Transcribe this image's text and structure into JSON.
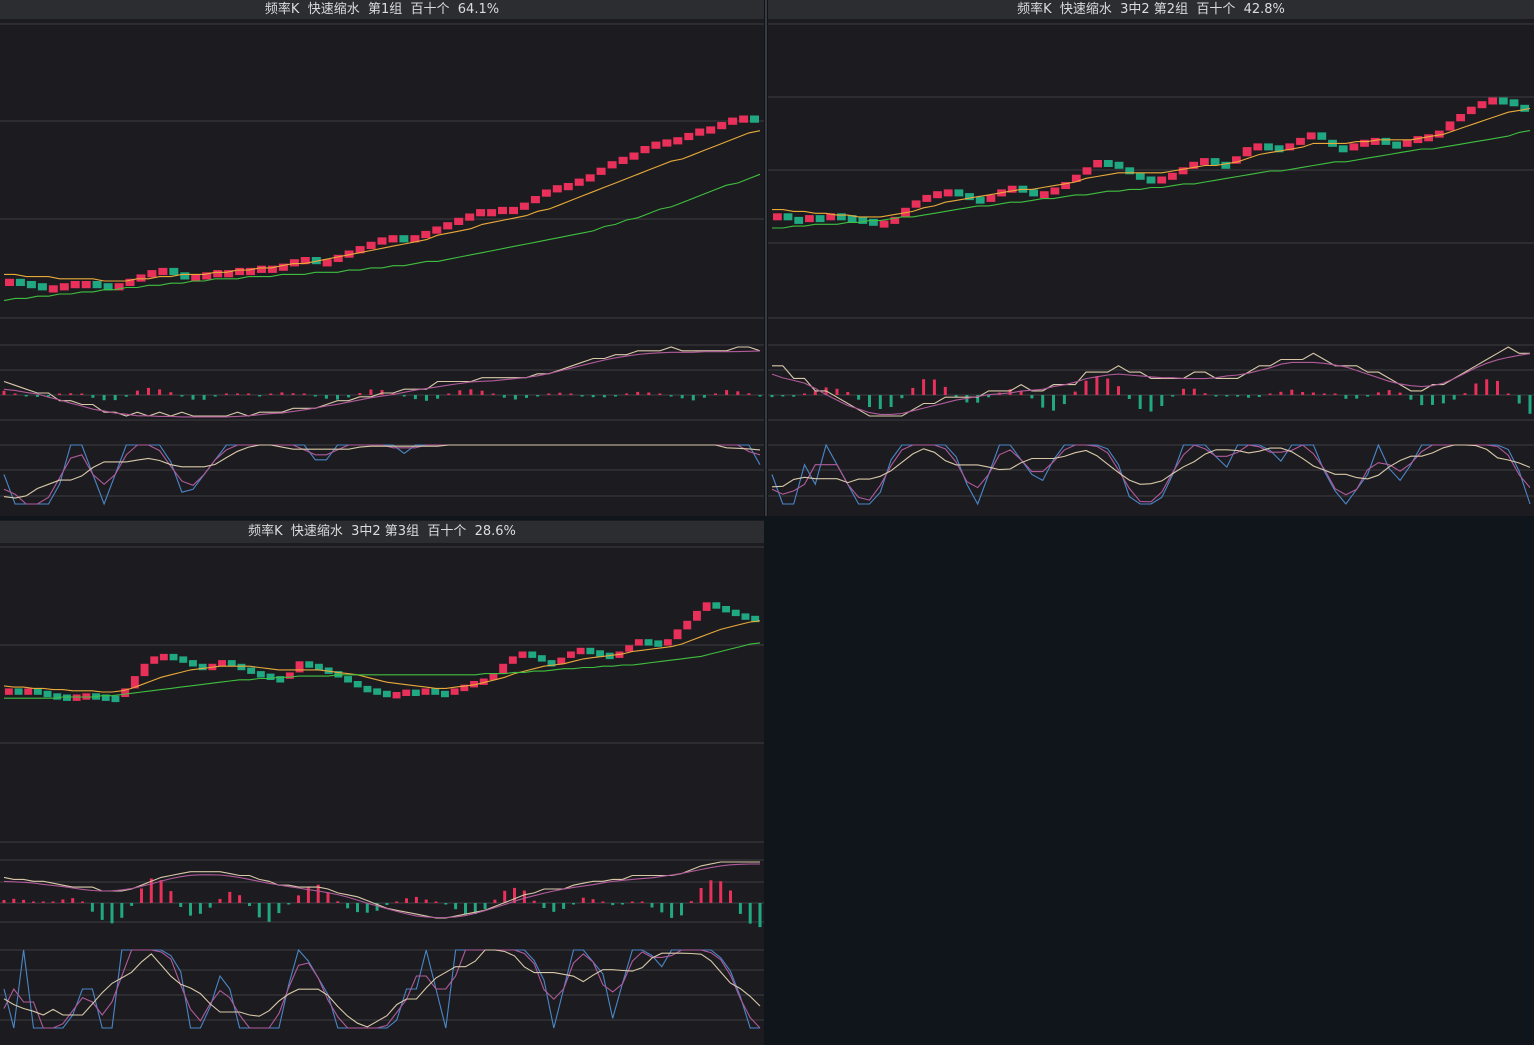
{
  "colors": {
    "background": "#10141b",
    "panel": "#1c1c20",
    "title_bar": "#2c2d31",
    "up": "#e8305a",
    "down": "#20a882",
    "ma_short": "#e8a93a",
    "ma_long": "#3fbf3f",
    "line_a": "#d8c8a8",
    "line_b": "#b05a9a",
    "line_c": "#4a86c8",
    "grid": "#3c3d42"
  },
  "panels": [
    {
      "title": "频率K  快速缩水  第1组  百十个  64.1%"
    },
    {
      "title": "频率K  快速缩水  3中2 第2组  百十个  42.8%"
    },
    {
      "title": "频率K  快速缩水  3中2 第3组  百十个  28.6%"
    }
  ],
  "chart_data": [
    {
      "type": "candlestick",
      "title": "频率K  快速缩水  第1组  百十个  64.1%",
      "ohlc_trend": [
        0.18,
        0.17,
        0.16,
        0.15,
        0.15,
        0.16,
        0.17,
        0.17,
        0.16,
        0.15,
        0.16,
        0.18,
        0.2,
        0.22,
        0.23,
        0.21,
        0.19,
        0.2,
        0.21,
        0.22,
        0.22,
        0.23,
        0.23,
        0.24,
        0.24,
        0.25,
        0.27,
        0.28,
        0.27,
        0.27,
        0.29,
        0.31,
        0.33,
        0.35,
        0.37,
        0.38,
        0.37,
        0.38,
        0.4,
        0.42,
        0.44,
        0.46,
        0.48,
        0.5,
        0.5,
        0.51,
        0.51,
        0.53,
        0.56,
        0.59,
        0.61,
        0.62,
        0.64,
        0.66,
        0.69,
        0.72,
        0.74,
        0.76,
        0.79,
        0.81,
        0.82,
        0.83,
        0.85,
        0.87,
        0.88,
        0.9,
        0.92,
        0.93,
        0.91
      ],
      "ma_short": [
        0.2,
        0.2,
        0.19,
        0.19,
        0.19,
        0.18,
        0.18,
        0.18,
        0.18,
        0.17,
        0.17,
        0.17,
        0.18,
        0.18,
        0.19,
        0.19,
        0.2,
        0.2,
        0.2,
        0.21,
        0.21,
        0.22,
        0.22,
        0.23,
        0.23,
        0.24,
        0.25,
        0.25,
        0.26,
        0.27,
        0.28,
        0.29,
        0.3,
        0.31,
        0.32,
        0.33,
        0.34,
        0.35,
        0.36,
        0.38,
        0.39,
        0.4,
        0.41,
        0.43,
        0.44,
        0.45,
        0.46,
        0.47,
        0.49,
        0.5,
        0.52,
        0.54,
        0.56,
        0.58,
        0.6,
        0.62,
        0.64,
        0.66,
        0.68,
        0.7,
        0.72,
        0.73,
        0.75,
        0.77,
        0.79,
        0.81,
        0.83,
        0.85,
        0.86
      ],
      "ma_long": [
        0.08,
        0.09,
        0.09,
        0.1,
        0.1,
        0.11,
        0.11,
        0.12,
        0.12,
        0.13,
        0.13,
        0.14,
        0.14,
        0.15,
        0.15,
        0.16,
        0.16,
        0.17,
        0.17,
        0.18,
        0.18,
        0.18,
        0.19,
        0.19,
        0.19,
        0.2,
        0.2,
        0.2,
        0.21,
        0.21,
        0.21,
        0.22,
        0.22,
        0.23,
        0.23,
        0.24,
        0.24,
        0.25,
        0.26,
        0.26,
        0.27,
        0.28,
        0.29,
        0.3,
        0.31,
        0.32,
        0.33,
        0.34,
        0.35,
        0.36,
        0.37,
        0.38,
        0.39,
        0.4,
        0.42,
        0.43,
        0.45,
        0.46,
        0.48,
        0.5,
        0.51,
        0.53,
        0.55,
        0.57,
        0.59,
        0.61,
        0.62,
        0.64,
        0.66
      ]
    },
    {
      "type": "candlestick",
      "title": "频率K  快速缩水  3中2 第2组  百十个  42.8%",
      "ohlc_trend": [
        0.22,
        0.2,
        0.19,
        0.21,
        0.2,
        0.22,
        0.21,
        0.2,
        0.19,
        0.17,
        0.18,
        0.2,
        0.25,
        0.29,
        0.32,
        0.34,
        0.35,
        0.33,
        0.31,
        0.29,
        0.32,
        0.35,
        0.37,
        0.35,
        0.33,
        0.34,
        0.36,
        0.39,
        0.43,
        0.47,
        0.51,
        0.5,
        0.47,
        0.44,
        0.42,
        0.41,
        0.42,
        0.44,
        0.47,
        0.5,
        0.52,
        0.5,
        0.49,
        0.53,
        0.58,
        0.6,
        0.59,
        0.57,
        0.6,
        0.63,
        0.66,
        0.62,
        0.59,
        0.58,
        0.6,
        0.62,
        0.63,
        0.61,
        0.6,
        0.62,
        0.64,
        0.65,
        0.67,
        0.72,
        0.76,
        0.8,
        0.83,
        0.85,
        0.84,
        0.81,
        0.78
      ],
      "ma_short": [
        0.24,
        0.24,
        0.23,
        0.23,
        0.22,
        0.22,
        0.21,
        0.21,
        0.2,
        0.2,
        0.2,
        0.21,
        0.22,
        0.23,
        0.25,
        0.26,
        0.28,
        0.29,
        0.3,
        0.31,
        0.32,
        0.33,
        0.34,
        0.35,
        0.35,
        0.36,
        0.37,
        0.38,
        0.39,
        0.41,
        0.42,
        0.43,
        0.44,
        0.44,
        0.44,
        0.44,
        0.44,
        0.45,
        0.46,
        0.47,
        0.48,
        0.48,
        0.49,
        0.5,
        0.52,
        0.54,
        0.55,
        0.56,
        0.57,
        0.58,
        0.6,
        0.6,
        0.6,
        0.6,
        0.61,
        0.61,
        0.62,
        0.62,
        0.62,
        0.62,
        0.63,
        0.64,
        0.65,
        0.67,
        0.69,
        0.71,
        0.73,
        0.75,
        0.77,
        0.78,
        0.79
      ],
      "ma_long": [
        0.14,
        0.14,
        0.15,
        0.15,
        0.16,
        0.16,
        0.16,
        0.17,
        0.17,
        0.18,
        0.18,
        0.19,
        0.2,
        0.2,
        0.21,
        0.22,
        0.23,
        0.24,
        0.25,
        0.26,
        0.26,
        0.27,
        0.28,
        0.28,
        0.29,
        0.3,
        0.3,
        0.31,
        0.32,
        0.32,
        0.33,
        0.34,
        0.34,
        0.35,
        0.35,
        0.36,
        0.36,
        0.37,
        0.38,
        0.38,
        0.39,
        0.4,
        0.41,
        0.42,
        0.43,
        0.44,
        0.45,
        0.45,
        0.46,
        0.47,
        0.48,
        0.49,
        0.5,
        0.5,
        0.51,
        0.52,
        0.53,
        0.54,
        0.55,
        0.56,
        0.57,
        0.57,
        0.58,
        0.59,
        0.6,
        0.61,
        0.62,
        0.63,
        0.64,
        0.66,
        0.67
      ]
    },
    {
      "type": "candlestick",
      "title": "频率K  快速缩水  3中2 第3组  百十个  28.6%",
      "ohlc_trend": [
        0.3,
        0.29,
        0.3,
        0.28,
        0.26,
        0.25,
        0.24,
        0.25,
        0.26,
        0.25,
        0.24,
        0.23,
        0.3,
        0.4,
        0.5,
        0.56,
        0.58,
        0.56,
        0.53,
        0.5,
        0.47,
        0.5,
        0.53,
        0.5,
        0.47,
        0.44,
        0.42,
        0.4,
        0.38,
        0.43,
        0.52,
        0.5,
        0.47,
        0.44,
        0.4,
        0.36,
        0.32,
        0.3,
        0.28,
        0.26,
        0.27,
        0.29,
        0.28,
        0.3,
        0.28,
        0.26,
        0.3,
        0.33,
        0.36,
        0.38,
        0.42,
        0.5,
        0.56,
        0.6,
        0.57,
        0.53,
        0.5,
        0.55,
        0.6,
        0.63,
        0.61,
        0.59,
        0.56,
        0.6,
        0.65,
        0.7,
        0.69,
        0.67,
        0.7,
        0.78,
        0.85,
        0.93,
        1,
        0.97,
        0.94,
        0.91,
        0.89,
        0.86
      ],
      "ma_short": [
        0.32,
        0.31,
        0.31,
        0.3,
        0.3,
        0.29,
        0.29,
        0.28,
        0.28,
        0.28,
        0.27,
        0.27,
        0.28,
        0.3,
        0.33,
        0.36,
        0.39,
        0.41,
        0.43,
        0.45,
        0.46,
        0.47,
        0.48,
        0.48,
        0.48,
        0.48,
        0.47,
        0.46,
        0.45,
        0.45,
        0.45,
        0.45,
        0.45,
        0.44,
        0.43,
        0.42,
        0.41,
        0.39,
        0.37,
        0.35,
        0.34,
        0.33,
        0.32,
        0.31,
        0.3,
        0.3,
        0.31,
        0.32,
        0.33,
        0.35,
        0.37,
        0.39,
        0.42,
        0.44,
        0.46,
        0.48,
        0.49,
        0.5,
        0.52,
        0.54,
        0.55,
        0.56,
        0.57,
        0.58,
        0.6,
        0.61,
        0.62,
        0.63,
        0.64,
        0.66,
        0.69,
        0.72,
        0.75,
        0.78,
        0.8,
        0.82,
        0.84,
        0.85
      ],
      "ma_long": [
        0.22,
        0.22,
        0.22,
        0.22,
        0.22,
        0.22,
        0.23,
        0.23,
        0.23,
        0.23,
        0.24,
        0.24,
        0.25,
        0.26,
        0.27,
        0.28,
        0.29,
        0.3,
        0.31,
        0.32,
        0.33,
        0.34,
        0.35,
        0.36,
        0.37,
        0.37,
        0.38,
        0.38,
        0.39,
        0.39,
        0.4,
        0.4,
        0.4,
        0.4,
        0.41,
        0.41,
        0.41,
        0.41,
        0.41,
        0.41,
        0.41,
        0.41,
        0.41,
        0.41,
        0.41,
        0.41,
        0.41,
        0.41,
        0.41,
        0.42,
        0.42,
        0.42,
        0.43,
        0.43,
        0.44,
        0.44,
        0.45,
        0.46,
        0.46,
        0.47,
        0.47,
        0.48,
        0.48,
        0.49,
        0.49,
        0.5,
        0.51,
        0.52,
        0.53,
        0.54,
        0.55,
        0.56,
        0.58,
        0.6,
        0.62,
        0.64,
        0.66,
        0.67
      ]
    }
  ]
}
